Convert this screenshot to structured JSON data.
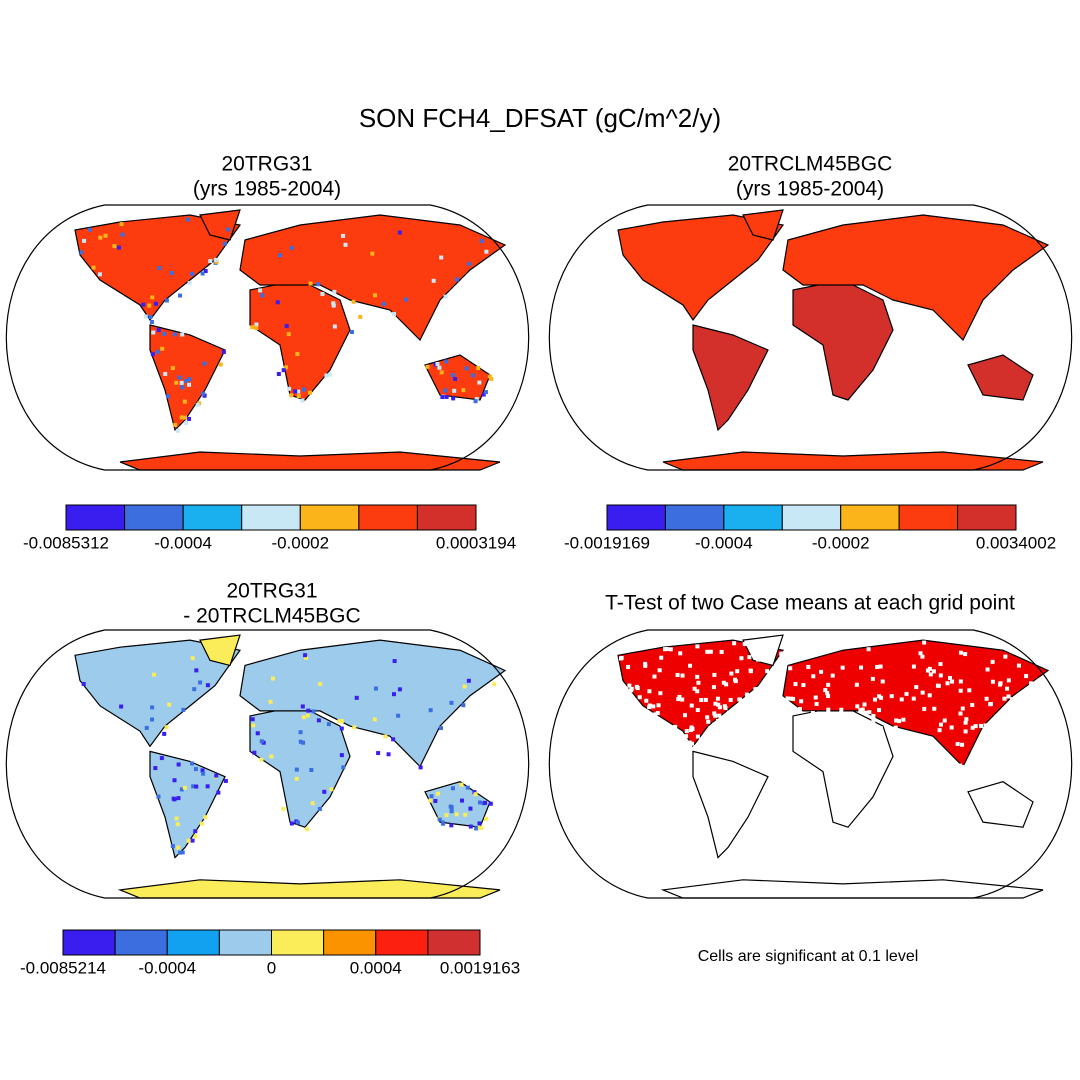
{
  "title": "SON FCH4_DFSAT (gC/m^2/y)",
  "panels": [
    {
      "title": [
        "20TRG31",
        "(yrs 1985-2004)"
      ],
      "colorbar": {
        "colors": [
          "#3a1ef0",
          "#3c6ee0",
          "#1ab0f0",
          "#c8e8f5",
          "#fbb51a",
          "#fc3b0f",
          "#d3302c"
        ],
        "labels": [
          "-0.0085312",
          "-0.0004",
          "-0.0002",
          "0.0003194"
        ]
      }
    },
    {
      "title": [
        "20TRCLM45BGC",
        "(yrs 1985-2004)"
      ],
      "colorbar": {
        "colors": [
          "#3a1ef0",
          "#3c6ee0",
          "#1ab0f0",
          "#c8e8f5",
          "#fbb51a",
          "#fc3b0f",
          "#d3302c"
        ],
        "labels": [
          "-0.0019169",
          "-0.0004",
          "-0.0002",
          "0.0034002"
        ]
      }
    },
    {
      "title": [
        "20TRG31",
        "- 20TRCLM45BGC"
      ],
      "colorbar": {
        "colors": [
          "#3a1ef0",
          "#3c6ee0",
          "#12a0f0",
          "#9ccbeb",
          "#fbec5a",
          "#fb9200",
          "#fc2010",
          "#d03030"
        ],
        "labels": [
          "-0.0085214",
          "-0.0004",
          "0",
          "0.0004",
          "0.0019163"
        ]
      }
    },
    {
      "title": [
        "T-Test of two Case means at each grid point"
      ],
      "note": "Cells are significant at 0.1 level"
    }
  ]
}
